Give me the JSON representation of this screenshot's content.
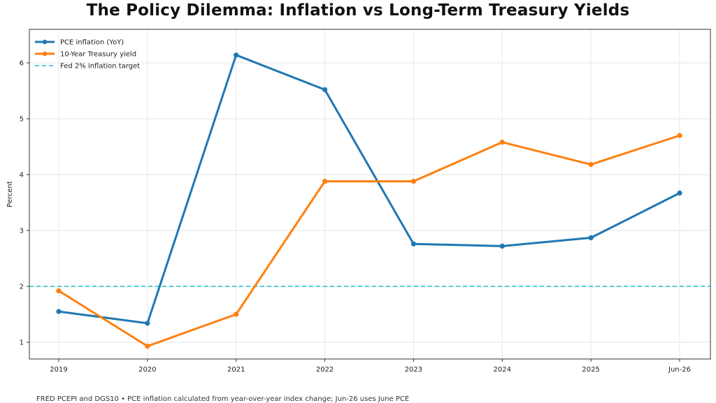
{
  "title": "The Policy Dilemma: Inflation vs Long-Term Treasury Yields",
  "footnote": "FRED PCEPI and DGS10 • PCE inflation calculated from year-over-year index change; Jun-26 uses June PCE",
  "chart_data": {
    "type": "line",
    "title": "The Policy Dilemma: Inflation vs Long-Term Treasury Yields",
    "xlabel": "",
    "ylabel": "Percent",
    "categories": [
      "2019",
      "2020",
      "2021",
      "2022",
      "2023",
      "2024",
      "2025",
      "Jun-26"
    ],
    "ylim": [
      0.7,
      6.6
    ],
    "yticks": [
      1,
      2,
      3,
      4,
      5,
      6
    ],
    "grid": true,
    "legend_position": "top-left",
    "series": [
      {
        "name": "PCE inflation (YoY)",
        "color": "#1f77b4",
        "values": [
          1.55,
          1.34,
          6.14,
          5.52,
          2.76,
          2.72,
          2.87,
          3.67
        ]
      },
      {
        "name": "10-Year Treasury yield",
        "color": "#ff7f0e",
        "values": [
          1.92,
          0.93,
          1.5,
          3.88,
          3.88,
          4.58,
          4.18,
          4.7
        ]
      }
    ],
    "reference_line": {
      "name": "Fed 2% inflation target",
      "value": 2,
      "color": "#17becf",
      "style": "dashed"
    }
  }
}
